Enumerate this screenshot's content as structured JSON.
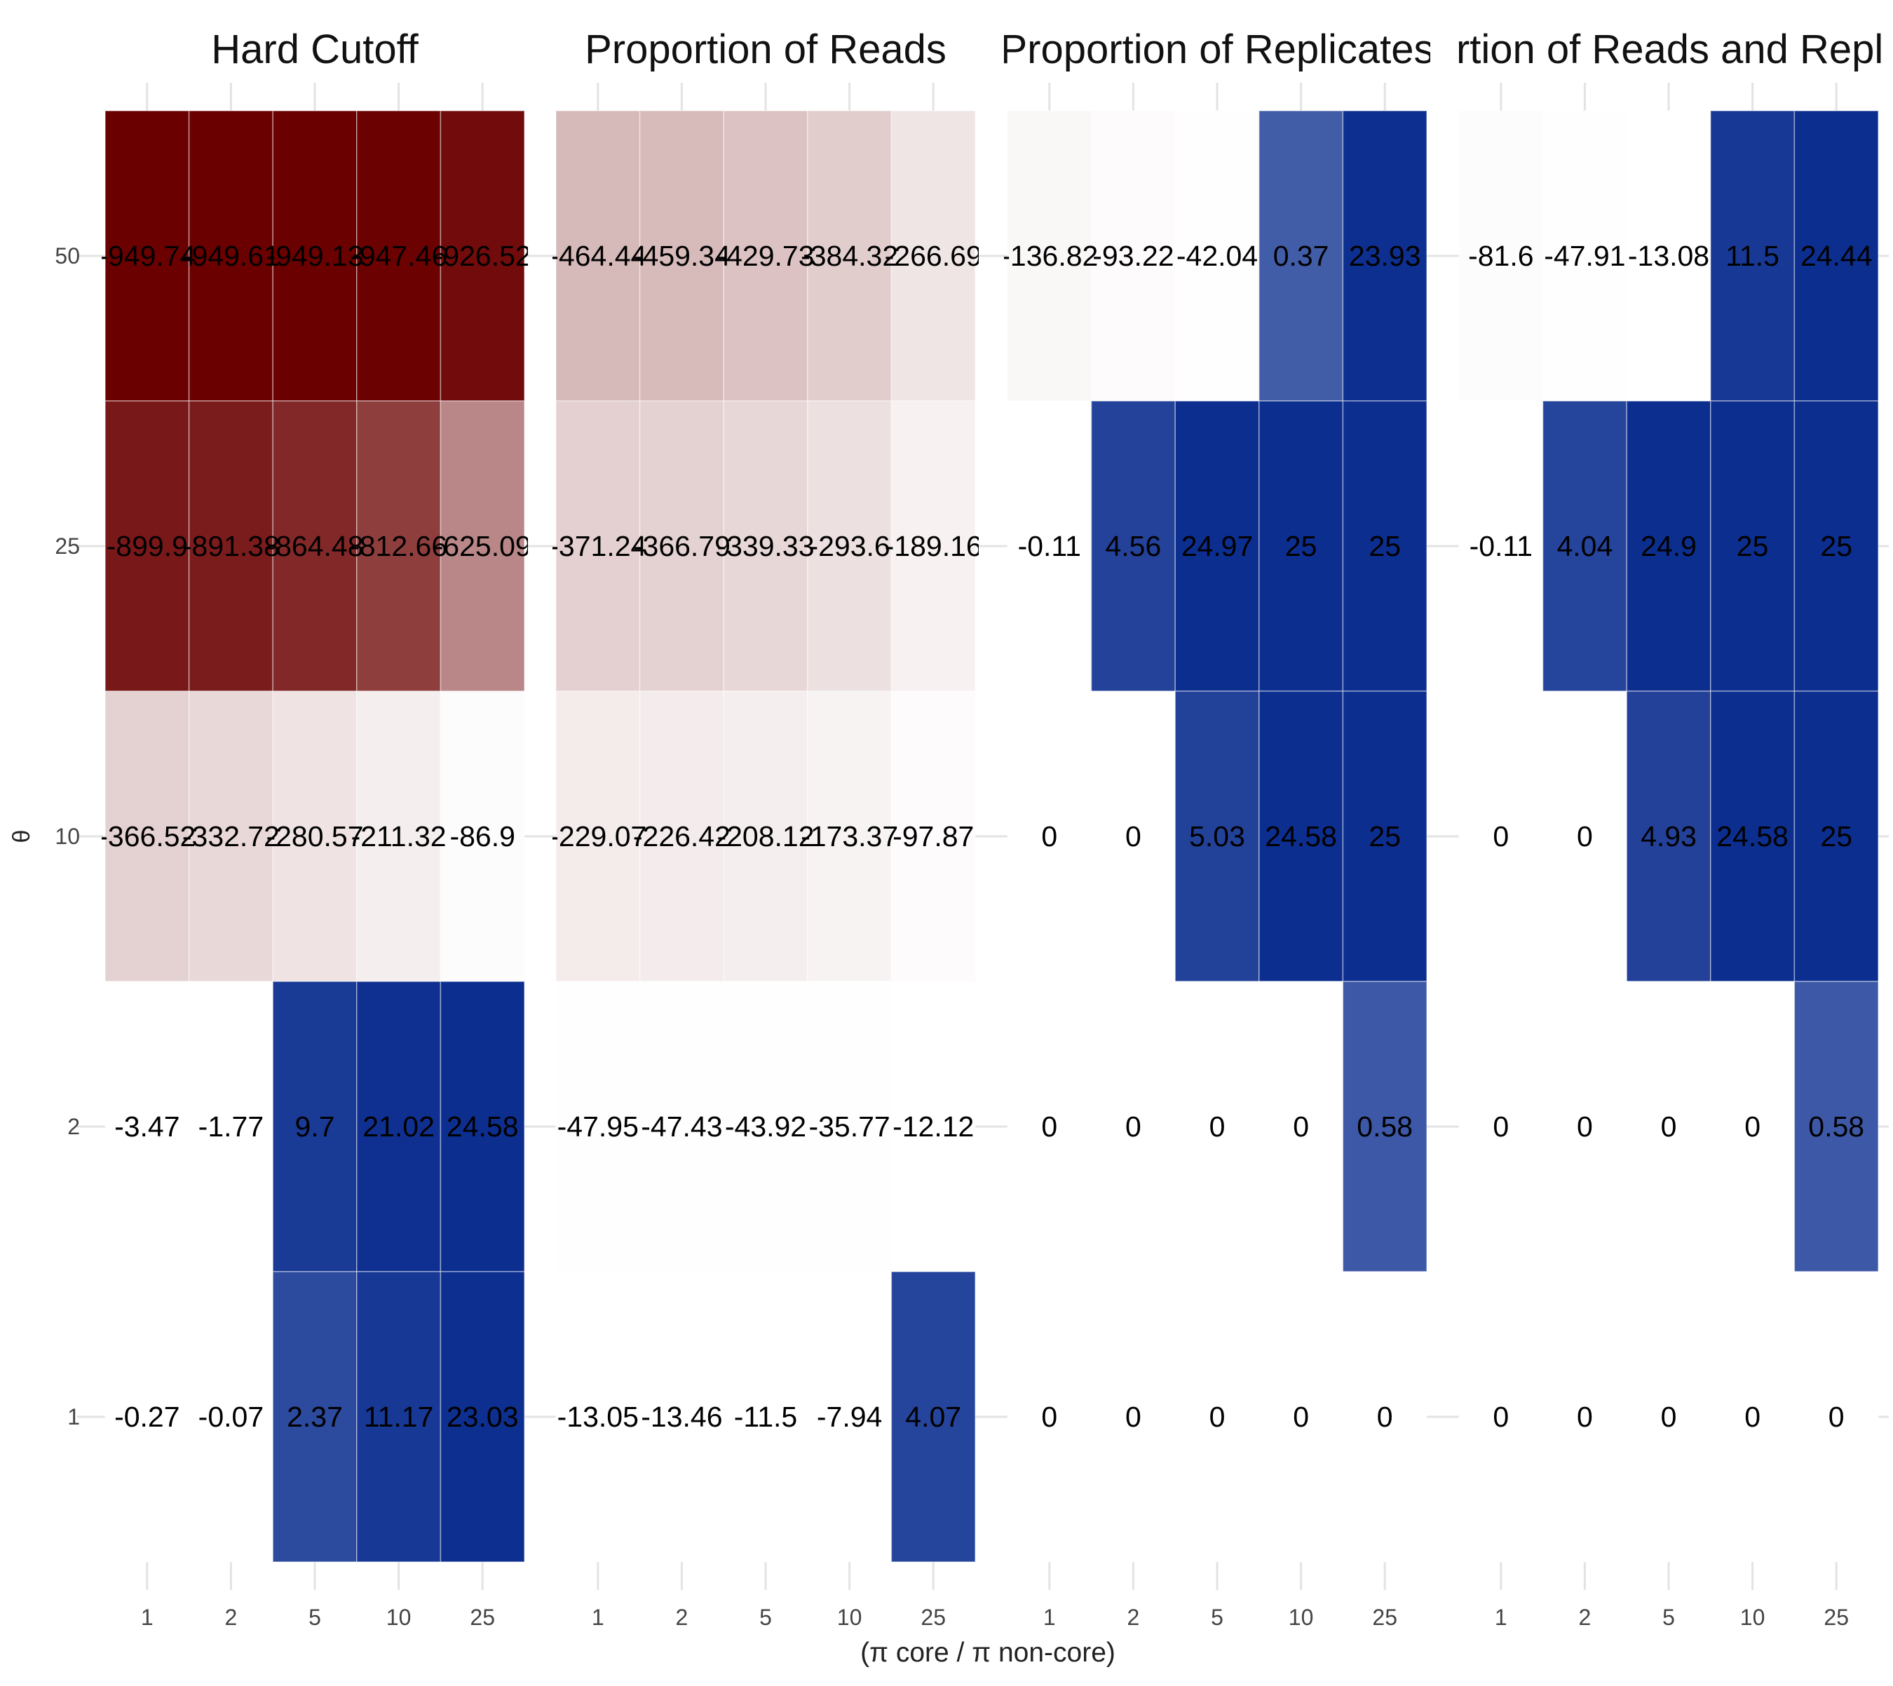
{
  "chart_data": {
    "type": "heatmap",
    "xlabel": "(π core / π non-core)",
    "ylabel": "θ",
    "x_categories": [
      "1",
      "2",
      "5",
      "10",
      "25"
    ],
    "y_categories": [
      "1",
      "2",
      "10",
      "25",
      "50"
    ],
    "grid": true,
    "legend": "none",
    "color_scale": {
      "negative": "#6b0000",
      "mid": "#ffffff",
      "positive": "#0c2e8f",
      "domain": [
        -950,
        0,
        25
      ]
    },
    "panels": [
      {
        "title": "Hard Cutoff",
        "rows": {
          "50": [
            "-949.74",
            "-949.61",
            "-949.13",
            "-947.46",
            "-926.52"
          ],
          "25": [
            "-899.9",
            "-891.38",
            "-864.48",
            "-812.66",
            "-625.09"
          ],
          "10": [
            "-366.52",
            "-332.72",
            "-280.57",
            "-211.32",
            "-86.9"
          ],
          "2": [
            "-3.47",
            "-1.77",
            "9.7",
            "21.02",
            "24.58"
          ],
          "1": [
            "-0.27",
            "-0.07",
            "2.37",
            "11.17",
            "23.03"
          ]
        }
      },
      {
        "title": "Proportion of Reads",
        "rows": {
          "50": [
            "-464.44",
            "-459.34",
            "-429.73",
            "-384.32",
            "-266.69"
          ],
          "25": [
            "-371.24",
            "-366.79",
            "-339.33",
            "-293.6",
            "-189.16"
          ],
          "10": [
            "-229.07",
            "-226.42",
            "-208.12",
            "-173.37",
            "-97.87"
          ],
          "2": [
            "-47.95",
            "-47.43",
            "-43.92",
            "-35.77",
            "-12.12"
          ],
          "1": [
            "-13.05",
            "-13.46",
            "-11.5",
            "-7.94",
            "4.07"
          ]
        }
      },
      {
        "title": "Proportion of Replicates",
        "rows": {
          "50": [
            "-136.82",
            "-93.22",
            "-42.04",
            "0.37",
            "23.93"
          ],
          "25": [
            "-0.11",
            "4.56",
            "24.97",
            "25",
            "25"
          ],
          "10": [
            "0",
            "0",
            "5.03",
            "24.58",
            "25"
          ],
          "2": [
            "0",
            "0",
            "0",
            "0",
            "0.58"
          ],
          "1": [
            "0",
            "0",
            "0",
            "0",
            "0"
          ]
        }
      },
      {
        "title": "Proportion of Reads and Replicates",
        "rows": {
          "50": [
            "-81.6",
            "-47.91",
            "-13.08",
            "11.5",
            "24.44"
          ],
          "25": [
            "-0.11",
            "4.04",
            "24.9",
            "25",
            "25"
          ],
          "10": [
            "0",
            "0",
            "4.93",
            "24.58",
            "25"
          ],
          "2": [
            "0",
            "0",
            "0",
            "0",
            "0.58"
          ],
          "1": [
            "0",
            "0",
            "0",
            "0",
            "0"
          ]
        }
      }
    ]
  }
}
